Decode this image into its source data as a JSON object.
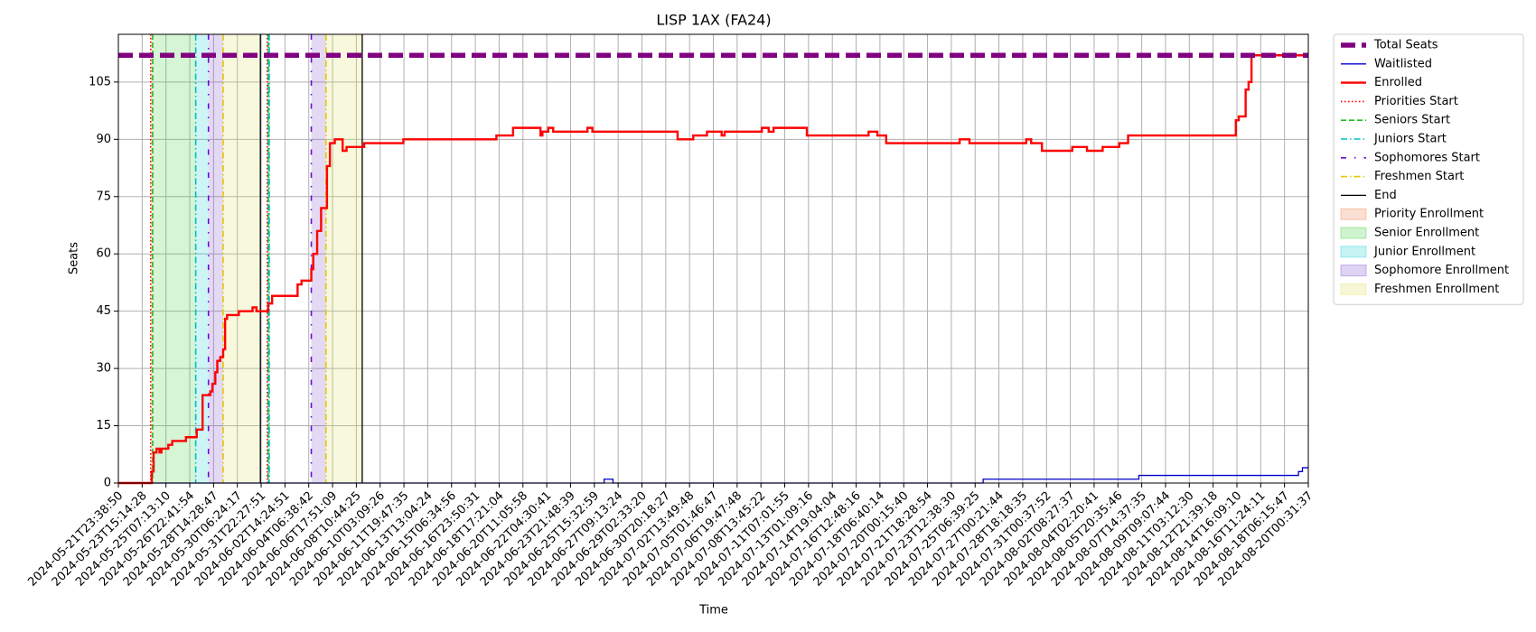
{
  "chart_data": {
    "type": "line",
    "title": "LISP 1AX (FA24)",
    "xlabel": "Time",
    "ylabel": "Seats",
    "grid": true,
    "legend": "outside-upper-right",
    "xlim": [
      0,
      1215
    ],
    "ylim": [
      0,
      117.5
    ],
    "yticks": [
      0,
      15,
      30,
      45,
      60,
      75,
      90,
      105
    ],
    "xticks": [
      {
        "value": 0,
        "label": "2024-05-21T23:38:50"
      },
      {
        "value": 24.3,
        "label": "2024-05-23T15:14:28"
      },
      {
        "value": 48.6,
        "label": "2024-05-25T07:13:10"
      },
      {
        "value": 72.9,
        "label": "2024-05-26T22:41:54"
      },
      {
        "value": 97.2,
        "label": "2024-05-28T14:28:47"
      },
      {
        "value": 121.5,
        "label": "2024-05-30T06:24:17"
      },
      {
        "value": 145.8,
        "label": "2024-05-31T22:27:51"
      },
      {
        "value": 170.1,
        "label": "2024-06-02T14:24:51"
      },
      {
        "value": 194.4,
        "label": "2024-06-04T06:38:42"
      },
      {
        "value": 218.7,
        "label": "2024-06-06T17:51:09"
      },
      {
        "value": 243,
        "label": "2024-06-08T10:44:25"
      },
      {
        "value": 267.3,
        "label": "2024-06-10T03:09:26"
      },
      {
        "value": 291.6,
        "label": "2024-06-11T19:47:35"
      },
      {
        "value": 315.9,
        "label": "2024-06-13T13:04:24"
      },
      {
        "value": 340.2,
        "label": "2024-06-15T06:34:56"
      },
      {
        "value": 364.5,
        "label": "2024-06-16T23:50:31"
      },
      {
        "value": 388.8,
        "label": "2024-06-18T17:21:04"
      },
      {
        "value": 413.1,
        "label": "2024-06-20T11:05:58"
      },
      {
        "value": 437.4,
        "label": "2024-06-22T04:30:41"
      },
      {
        "value": 461.7,
        "label": "2024-06-23T21:48:39"
      },
      {
        "value": 486,
        "label": "2024-06-25T15:32:59"
      },
      {
        "value": 510.3,
        "label": "2024-06-27T09:13:24"
      },
      {
        "value": 534.6,
        "label": "2024-06-29T02:33:20"
      },
      {
        "value": 558.9,
        "label": "2024-06-30T20:18:27"
      },
      {
        "value": 583.2,
        "label": "2024-07-02T13:49:48"
      },
      {
        "value": 607.5,
        "label": "2024-07-05T01:46:47"
      },
      {
        "value": 631.8,
        "label": "2024-07-06T19:47:48"
      },
      {
        "value": 656.1,
        "label": "2024-07-08T13:45:22"
      },
      {
        "value": 680.4,
        "label": "2024-07-11T07:01:55"
      },
      {
        "value": 704.7,
        "label": "2024-07-13T01:09:16"
      },
      {
        "value": 729,
        "label": "2024-07-14T19:04:04"
      },
      {
        "value": 753.3,
        "label": "2024-07-16T12:48:16"
      },
      {
        "value": 777.6,
        "label": "2024-07-18T06:40:14"
      },
      {
        "value": 801.9,
        "label": "2024-07-20T00:15:40"
      },
      {
        "value": 826.2,
        "label": "2024-07-21T18:28:54"
      },
      {
        "value": 850.5,
        "label": "2024-07-23T12:38:30"
      },
      {
        "value": 874.8,
        "label": "2024-07-25T06:39:25"
      },
      {
        "value": 899.1,
        "label": "2024-07-27T00:21:44"
      },
      {
        "value": 923.4,
        "label": "2024-07-28T18:18:35"
      },
      {
        "value": 947.7,
        "label": "2024-07-31T00:37:52"
      },
      {
        "value": 972,
        "label": "2024-08-02T08:27:37"
      },
      {
        "value": 996.3,
        "label": "2024-08-04T02:20:41"
      },
      {
        "value": 1020.6,
        "label": "2024-08-05T20:35:46"
      },
      {
        "value": 1044.9,
        "label": "2024-08-07T14:37:35"
      },
      {
        "value": 1069.2,
        "label": "2024-08-09T09:07:44"
      },
      {
        "value": 1093.5,
        "label": "2024-08-11T03:12:30"
      },
      {
        "value": 1117.8,
        "label": "2024-08-12T21:39:18"
      },
      {
        "value": 1142.1,
        "label": "2024-08-14T16:09:10"
      },
      {
        "value": 1166.4,
        "label": "2024-08-16T11:24:11"
      },
      {
        "value": 1190.7,
        "label": "2024-08-18T06:15:47"
      },
      {
        "value": 1215,
        "label": "2024-08-20T00:31:37"
      }
    ],
    "series": [
      {
        "name": "Total Seats",
        "color": "#800080",
        "linestyle": "bold-dashed",
        "x": [
          0,
          1215
        ],
        "values": [
          112,
          112
        ]
      },
      {
        "name": "Waitlisted",
        "color": "#0000cc",
        "linestyle": "solid",
        "x": [
          0,
          496,
          505,
          883,
          1042,
          1205,
          1209,
          1215
        ],
        "values": [
          0,
          1,
          0,
          1,
          2,
          3,
          4,
          4
        ]
      },
      {
        "name": "Enrolled",
        "color": "#ff0000",
        "linestyle": "thick",
        "x": [
          0,
          32,
          34,
          36,
          39,
          42,
          44,
          49,
          51,
          55,
          67,
          69,
          79,
          80,
          85,
          86,
          92,
          94,
          96,
          99,
          101,
          104,
          107,
          109,
          111,
          115,
          123,
          137,
          141,
          151,
          153,
          157,
          181,
          183,
          187,
          195,
          197,
          199,
          203,
          207,
          212,
          213,
          216,
          221,
          227,
          229,
          233,
          249,
          251,
          289,
          291,
          384,
          386,
          401,
          403,
          429,
          431,
          433,
          439,
          444,
          477,
          479,
          484,
          569,
          571,
          585,
          587,
          599,
          601,
          614,
          616,
          619,
          655,
          657,
          664,
          669,
          701,
          703,
          764,
          766,
          773,
          775,
          782,
          784,
          857,
          859,
          867,
          869,
          925,
          927,
          932,
          941,
          943,
          972,
          974,
          987,
          989,
          1003,
          1005,
          1020,
          1022,
          1029,
          1031,
          1137,
          1141,
          1144,
          1149,
          1151,
          1154,
          1157,
          1215
        ],
        "values": [
          0,
          0,
          3,
          8,
          9,
          8,
          9,
          9,
          10,
          11,
          11,
          12,
          12,
          14,
          14,
          23,
          23,
          24,
          26,
          29,
          32,
          33,
          35,
          43,
          44,
          44,
          45,
          46,
          45,
          45,
          47,
          49,
          49,
          52,
          53,
          53,
          56,
          60,
          66,
          72,
          72,
          83,
          89,
          90,
          90,
          87,
          88,
          88,
          89,
          89,
          90,
          90,
          91,
          91,
          93,
          93,
          91,
          92,
          93,
          92,
          92,
          93,
          92,
          92,
          90,
          90,
          91,
          91,
          92,
          92,
          91,
          92,
          92,
          93,
          92,
          93,
          93,
          91,
          91,
          92,
          92,
          91,
          91,
          89,
          89,
          90,
          90,
          89,
          89,
          90,
          89,
          89,
          87,
          87,
          88,
          88,
          87,
          87,
          88,
          88,
          89,
          89,
          91,
          91,
          95,
          96,
          96,
          103,
          105,
          112,
          112
        ]
      }
    ],
    "markers": [
      {
        "name": "Priorities Start",
        "color": "#ff0000",
        "linestyle": "dotted",
        "x": [
          33,
          152
        ]
      },
      {
        "name": "Seniors Start",
        "color": "#22bb22",
        "linestyle": "dashed",
        "x": [
          35,
          153
        ]
      },
      {
        "name": "Juniors Start",
        "color": "#00bfbf",
        "linestyle": "dashdot",
        "x": [
          79,
          154
        ]
      },
      {
        "name": "Sophomores Start",
        "color": "#6a0dcc",
        "linestyle": "loose-dashdot",
        "x": [
          92,
          197
        ]
      },
      {
        "name": "Freshmen Start",
        "color": "#e6c800",
        "linestyle": "dashdot",
        "x": [
          107,
          212
        ]
      },
      {
        "name": "End",
        "color": "#000000",
        "linestyle": "solid",
        "x": [
          145,
          249
        ]
      }
    ],
    "spans": [
      {
        "name": "Priority Enrollment",
        "color": "#f08050",
        "ranges": [
          [
            33,
            35
          ],
          [
            152,
            153
          ]
        ]
      },
      {
        "name": "Senior Enrollment",
        "color": "#40d040",
        "ranges": [
          [
            35,
            79
          ],
          [
            153,
            154
          ]
        ]
      },
      {
        "name": "Junior Enrollment",
        "color": "#20d0d8",
        "ranges": [
          [
            79,
            92
          ],
          [
            154,
            155
          ]
        ]
      },
      {
        "name": "Sophomore Enrollment",
        "color": "#8050d0",
        "ranges": [
          [
            92,
            107
          ],
          [
            197,
            212
          ]
        ]
      },
      {
        "name": "Freshmen Enrollment",
        "color": "#e0e060",
        "ranges": [
          [
            107,
            145
          ],
          [
            212,
            249
          ]
        ]
      }
    ]
  }
}
